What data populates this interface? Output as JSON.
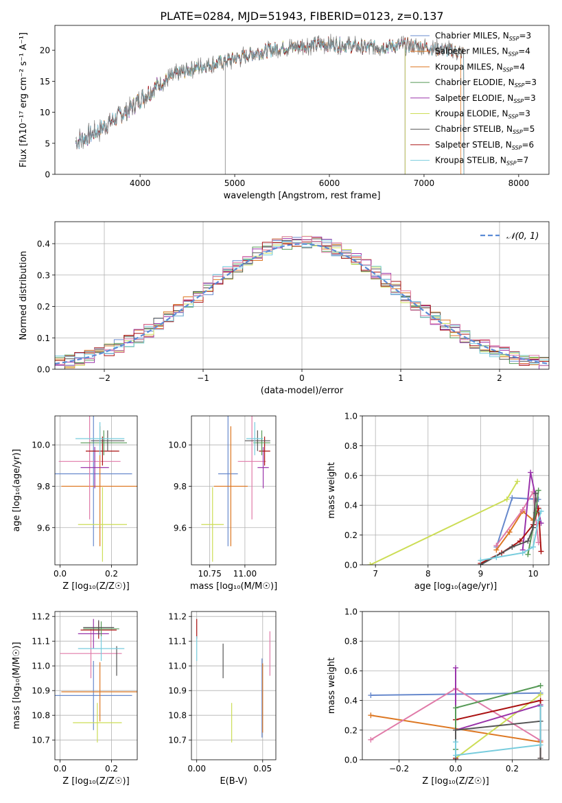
{
  "figure": {
    "title": "PLATE=0284, MJD=51943, FIBERID=0123, z=0.137"
  },
  "colors": {
    "Chabrier MILES": "#6688cc",
    "Salpeter MILES": "#dd7722",
    "Kroupa MILES": "#dd7722",
    "Chabrier ELODIE": "#559955",
    "Salpeter ELODIE": "#9933aa",
    "Kroupa ELODIE": "#ccdd55",
    "Chabrier STELIB": "#555555",
    "Salpeter STELIB": "#aa1111",
    "Kroupa STELIB": "#77ccdd",
    "pink": "#e07aa8",
    "data": "#808080"
  },
  "chart_data": [
    {
      "id": "spectrum",
      "type": "line",
      "title": "PLATE=0284, MJD=51943, FIBERID=0123, z=0.137",
      "xlabel": "wavelength [Angstrom, rest frame]",
      "ylabel": "Flux [fλ10⁻¹⁷ erg cm⁻² s⁻¹ A⁻¹]",
      "xlim": [
        3100,
        8320
      ],
      "ylim": [
        0,
        24
      ],
      "xticks": [
        4000,
        5000,
        6000,
        7000,
        8000
      ],
      "yticks": [
        0,
        5,
        10,
        15,
        20
      ],
      "legend_position": "top-right",
      "legend": [
        {
          "name": "Chabrier MILES",
          "label": "Chabrier MILES, N",
          "sub": "SSP",
          "suffix": "=3",
          "color": "#6688cc"
        },
        {
          "name": "Salpeter MILES",
          "label": "Salpeter MILES, N",
          "sub": "SSP",
          "suffix": "=4",
          "color": "#dd7722"
        },
        {
          "name": "Kroupa MILES",
          "label": "Kroupa MILES, N",
          "sub": "SSP",
          "suffix": "=4",
          "color": "#dd7722"
        },
        {
          "name": "Chabrier ELODIE",
          "label": "Chabrier ELODIE, N",
          "sub": "SSP",
          "suffix": "=3",
          "color": "#559955"
        },
        {
          "name": "Salpeter ELODIE",
          "label": "Salpeter ELODIE, N",
          "sub": "SSP",
          "suffix": "=3",
          "color": "#9933aa"
        },
        {
          "name": "Kroupa ELODIE",
          "label": "Kroupa ELODIE, N",
          "sub": "SSP",
          "suffix": "=3",
          "color": "#ccdd55"
        },
        {
          "name": "Chabrier STELIB",
          "label": "Chabrier STELIB, N",
          "sub": "SSP",
          "suffix": "=5",
          "color": "#555555"
        },
        {
          "name": "Salpeter STELIB",
          "label": "Salpeter STELIB, N",
          "sub": "SSP",
          "suffix": "=6",
          "color": "#aa1111"
        },
        {
          "name": "Kroupa STELIB",
          "label": "Kroupa STELIB, N",
          "sub": "SSP",
          "suffix": "=7",
          "color": "#77ccdd"
        }
      ],
      "continuum": [
        [
          3320,
          5.2
        ],
        [
          3500,
          6.5
        ],
        [
          3700,
          8.6
        ],
        [
          3900,
          10.6
        ],
        [
          4000,
          12.1
        ],
        [
          4200,
          14.5
        ],
        [
          4400,
          16.2
        ],
        [
          4600,
          17.3
        ],
        [
          4800,
          17.8
        ],
        [
          5000,
          18.6
        ],
        [
          5200,
          19.5
        ],
        [
          5500,
          20.4
        ],
        [
          5800,
          20.8
        ],
        [
          6000,
          21.0
        ],
        [
          6200,
          20.8
        ],
        [
          6400,
          20.4
        ],
        [
          6600,
          20.6
        ],
        [
          6800,
          20.8
        ],
        [
          7000,
          20.6
        ],
        [
          7200,
          20.1
        ],
        [
          7400,
          19.6
        ]
      ],
      "model_ends": [
        {
          "name": "Chabrier MILES",
          "start": 3320,
          "end": 7420
        },
        {
          "name": "Salpeter MILES",
          "start": 3570,
          "end": 7390
        },
        {
          "name": "Kroupa MILES",
          "start": 3570,
          "end": 7420
        },
        {
          "name": "Chabrier ELODIE",
          "start": 3320,
          "end": 6800
        },
        {
          "name": "Salpeter ELODIE",
          "start": 3320,
          "end": 6800
        },
        {
          "name": "Kroupa ELODIE",
          "start": 3920,
          "end": 6800
        },
        {
          "name": "Chabrier STELIB",
          "start": 3320,
          "end": 7420
        },
        {
          "name": "Salpeter STELIB",
          "start": 3320,
          "end": 7420
        },
        {
          "name": "Kroupa STELIB",
          "start": 3320,
          "end": 7420
        }
      ]
    },
    {
      "id": "residuals",
      "type": "line",
      "xlabel": "(data-model)/error",
      "ylabel": "Normed distribution",
      "xlim": [
        -2.5,
        2.5
      ],
      "ylim": [
        0,
        0.47
      ],
      "xticks": [
        -2,
        -1,
        0,
        1,
        2
      ],
      "yticks": [
        0.0,
        0.1,
        0.2,
        0.3,
        0.4
      ],
      "grid": true,
      "legend_position": "top-right",
      "legend": [
        {
          "name": "N(0,1)",
          "label": "𝒩(0, 1)",
          "color": "#5b8bd6"
        }
      ],
      "bin_width": 0.1,
      "histogram_peaks": [
        0.45,
        0.43,
        0.42,
        0.41,
        0.44,
        0.42,
        0.4
      ]
    },
    {
      "id": "age-vs-Z",
      "type": "scatter",
      "xlabel": "Z [log₁₀(Z/Z☉)]",
      "ylabel": "age  [log₁₀(age/yr)]",
      "xlim": [
        -0.02,
        0.3
      ],
      "ylim": [
        9.42,
        10.14
      ],
      "xticks": [
        0.0,
        0.2
      ],
      "yticks": [
        9.6,
        9.8,
        10.0
      ],
      "grid": true,
      "points": [
        {
          "color": "#6688cc",
          "x": 0.13,
          "xerr": 0.15,
          "y": 9.86,
          "yerr": 0.35
        },
        {
          "color": "#dd7722",
          "x": 0.155,
          "xerr": 0.15,
          "y": 9.8,
          "yerr": 0.29
        },
        {
          "color": "#ccdd55",
          "x": 0.165,
          "xerr": 0.095,
          "y": 9.615,
          "yerr": 0.18
        },
        {
          "color": "#e07aa8",
          "x": 0.115,
          "xerr": 0.12,
          "y": 9.92,
          "yerr": 0.28
        },
        {
          "color": "#9933aa",
          "x": 0.135,
          "xerr": 0.055,
          "y": 9.89,
          "yerr": 0.1
        },
        {
          "color": "#aa1111",
          "x": 0.165,
          "xerr": 0.065,
          "y": 9.97,
          "yerr": 0.07
        },
        {
          "color": "#559955",
          "x": 0.17,
          "xerr": 0.09,
          "y": 10.01,
          "yerr": 0.06
        },
        {
          "color": "#555555",
          "x": 0.185,
          "xerr": 0.065,
          "y": 10.02,
          "yerr": 0.05
        },
        {
          "color": "#77ccdd",
          "x": 0.155,
          "xerr": 0.095,
          "y": 10.03,
          "yerr": 0.08
        }
      ]
    },
    {
      "id": "age-vs-mass",
      "type": "scatter",
      "xlabel": "mass [log₁₀(M/M☉)]",
      "ylabel": "",
      "xlim": [
        10.62,
        11.22
      ],
      "ylim": [
        9.42,
        10.14
      ],
      "xticks": [
        10.75,
        11.0
      ],
      "yticks": [
        9.6,
        9.8,
        10.0
      ],
      "grid": true,
      "points": [
        {
          "color": "#6688cc",
          "x": 10.88,
          "xerr": 0.07,
          "y": 9.86,
          "yerr": 0.35
        },
        {
          "color": "#dd7722",
          "x": 10.9,
          "xerr": 0.12,
          "y": 9.8,
          "yerr": 0.29
        },
        {
          "color": "#ccdd55",
          "x": 10.77,
          "xerr": 0.08,
          "y": 9.615,
          "yerr": 0.18
        },
        {
          "color": "#e07aa8",
          "x": 11.05,
          "xerr": 0.1,
          "y": 9.92,
          "yerr": 0.28
        },
        {
          "color": "#9933aa",
          "x": 11.13,
          "xerr": 0.04,
          "y": 9.89,
          "yerr": 0.1
        },
        {
          "color": "#aa1111",
          "x": 11.14,
          "xerr": 0.04,
          "y": 9.97,
          "yerr": 0.07
        },
        {
          "color": "#559955",
          "x": 11.12,
          "xerr": 0.06,
          "y": 10.01,
          "yerr": 0.06
        },
        {
          "color": "#555555",
          "x": 11.09,
          "xerr": 0.09,
          "y": 10.02,
          "yerr": 0.05
        },
        {
          "color": "#77ccdd",
          "x": 11.07,
          "xerr": 0.06,
          "y": 10.03,
          "yerr": 0.08
        }
      ]
    },
    {
      "id": "massweight-vs-age",
      "type": "line",
      "xlabel": "age  [log₁₀(age/yr)]",
      "ylabel": "mass weight",
      "xlim": [
        6.75,
        10.3
      ],
      "ylim": [
        0,
        1.0
      ],
      "xticks": [
        7,
        8,
        9,
        10
      ],
      "yticks": [
        0.0,
        0.2,
        0.4,
        0.6,
        0.8,
        1.0
      ],
      "grid": true,
      "series": [
        {
          "color": "#6688cc",
          "x": [
            9.3,
            9.6,
            10.1
          ],
          "y": [
            0.12,
            0.45,
            0.44
          ]
        },
        {
          "color": "#dd7722",
          "x": [
            9.3,
            9.55,
            9.8,
            10.0
          ],
          "y": [
            0.1,
            0.22,
            0.36,
            0.3
          ]
        },
        {
          "color": "#ccdd55",
          "x": [
            6.9,
            9.5,
            9.7
          ],
          "y": [
            0.0,
            0.44,
            0.56
          ]
        },
        {
          "color": "#e07aa8",
          "x": [
            9.3,
            9.8,
            10.0,
            10.1
          ],
          "y": [
            0.13,
            0.37,
            0.49,
            0.15
          ]
        },
        {
          "color": "#9933aa",
          "x": [
            9.8,
            9.95,
            10.15
          ],
          "y": [
            0.1,
            0.62,
            0.28
          ]
        },
        {
          "color": "#aa1111",
          "x": [
            9.0,
            9.4,
            9.75,
            10.0,
            10.1,
            10.15
          ],
          "y": [
            0.01,
            0.08,
            0.16,
            0.27,
            0.38,
            0.09
          ]
        },
        {
          "color": "#559955",
          "x": [
            9.9,
            10.05,
            10.1
          ],
          "y": [
            0.07,
            0.35,
            0.5
          ]
        },
        {
          "color": "#555555",
          "x": [
            9.0,
            9.6,
            9.9,
            10.0,
            10.05
          ],
          "y": [
            0.0,
            0.12,
            0.16,
            0.25,
            0.48
          ]
        },
        {
          "color": "#77ccdd",
          "x": [
            9.0,
            9.3,
            9.8,
            10.0,
            10.1,
            10.15
          ],
          "y": [
            0.03,
            0.05,
            0.08,
            0.12,
            0.3,
            0.36
          ]
        }
      ]
    },
    {
      "id": "mass-vs-Z",
      "type": "scatter",
      "xlabel": "Z [log₁₀(Z/Z☉)]",
      "ylabel": "mass [log₁₀(M/M☉)]",
      "xlim": [
        -0.02,
        0.3
      ],
      "ylim": [
        10.62,
        11.22
      ],
      "xticks": [
        0.0,
        0.2
      ],
      "yticks": [
        10.7,
        10.8,
        10.9,
        11.0,
        11.1,
        11.2
      ],
      "grid": true,
      "points": [
        {
          "color": "#6688cc",
          "x": 0.13,
          "xerr": 0.15,
          "y": 10.88,
          "yerr": 0.14
        },
        {
          "color": "#dd7722",
          "x": 0.155,
          "xerr": 0.15,
          "y": 10.895,
          "yerr": 0.12
        },
        {
          "color": "#ccdd55",
          "x": 0.145,
          "xerr": 0.095,
          "y": 10.77,
          "yerr": 0.08
        },
        {
          "color": "#e07aa8",
          "x": 0.12,
          "xerr": 0.12,
          "y": 11.05,
          "yerr": 0.1
        },
        {
          "color": "#9933aa",
          "x": 0.13,
          "xerr": 0.06,
          "y": 11.13,
          "yerr": 0.06
        },
        {
          "color": "#aa1111",
          "x": 0.15,
          "xerr": 0.07,
          "y": 11.145,
          "yerr": 0.035
        },
        {
          "color": "#559955",
          "x": 0.16,
          "xerr": 0.07,
          "y": 11.15,
          "yerr": 0.03
        },
        {
          "color": "#555555",
          "x": 0.15,
          "xerr": 0.06,
          "y": 11.155,
          "yerr": 0.03
        },
        {
          "color": "#555555",
          "x": 0.22,
          "xerr": 0.0,
          "y": 11.02,
          "yerr": 0.06
        },
        {
          "color": "#77ccdd",
          "x": 0.16,
          "xerr": 0.09,
          "y": 11.07,
          "yerr": 0.05
        }
      ]
    },
    {
      "id": "mass-vs-EBV",
      "type": "scatter",
      "xlabel": "E(B-V)",
      "ylabel": "",
      "xlim": [
        -0.004,
        0.06
      ],
      "ylim": [
        10.62,
        11.22
      ],
      "xticks": [
        0.0,
        0.05
      ],
      "yticks": [
        10.7,
        10.8,
        10.9,
        11.0,
        11.1,
        11.2
      ],
      "grid": true,
      "points": [
        {
          "color": "#aa1111",
          "x": 0.0,
          "xerr": 0.0,
          "y": 11.15,
          "yerr": 0.04
        },
        {
          "color": "#77ccdd",
          "x": 0.0,
          "xerr": 0.0,
          "y": 11.07,
          "yerr": 0.05
        },
        {
          "color": "#555555",
          "x": 0.02,
          "xerr": 0.0,
          "y": 11.02,
          "yerr": 0.07
        },
        {
          "color": "#ccdd55",
          "x": 0.0265,
          "xerr": 0.0,
          "y": 10.77,
          "yerr": 0.08
        },
        {
          "color": "#6688cc",
          "x": 0.0495,
          "xerr": 0.0,
          "y": 10.87,
          "yerr": 0.16
        },
        {
          "color": "#dd7722",
          "x": 0.05,
          "xerr": 0.0,
          "y": 10.87,
          "yerr": 0.14
        },
        {
          "color": "#e07aa8",
          "x": 0.0555,
          "xerr": 0.0,
          "y": 11.05,
          "yerr": 0.09
        }
      ]
    },
    {
      "id": "massweight-vs-Z",
      "type": "line",
      "xlabel": "Z [log₁₀(Z/Z☉)]",
      "ylabel": "mass weight",
      "xlim": [
        -0.33,
        0.33
      ],
      "ylim": [
        0,
        1.0
      ],
      "xticks": [
        -0.2,
        0.0,
        0.2
      ],
      "yticks": [
        0.0,
        0.2,
        0.4,
        0.6,
        0.8,
        1.0
      ],
      "grid": true,
      "series": [
        {
          "color": "#6688cc",
          "x": [
            -0.3,
            0.3
          ],
          "y": [
            0.435,
            0.45
          ]
        },
        {
          "color": "#dd7722",
          "x": [
            -0.3,
            0.3
          ],
          "y": [
            0.3,
            0.12
          ]
        },
        {
          "color": "#e07aa8",
          "x": [
            -0.3,
            0.0,
            0.3
          ],
          "y": [
            0.135,
            0.48,
            0.13
          ]
        },
        {
          "color": "#ccdd55",
          "x": [
            0.0,
            0.3
          ],
          "y": [
            0.01,
            0.44
          ]
        },
        {
          "color": "#9933aa",
          "x": [
            0.0,
            0.0,
            0.3
          ],
          "y": [
            0.62,
            0.2,
            0.37
          ]
        },
        {
          "color": "#aa1111",
          "x": [
            0.0,
            0.0,
            0.3,
            0.3
          ],
          "y": [
            0.01,
            0.27,
            0.4,
            0.01
          ]
        },
        {
          "color": "#559955",
          "x": [
            0.0,
            0.0,
            0.3
          ],
          "y": [
            0.07,
            0.35,
            0.5
          ]
        },
        {
          "color": "#555555",
          "x": [
            0.0,
            0.0,
            0.3,
            0.3
          ],
          "y": [
            0.0,
            0.2,
            0.26,
            0.01
          ]
        },
        {
          "color": "#77ccdd",
          "x": [
            0.0,
            0.0,
            0.3,
            0.3
          ],
          "y": [
            0.12,
            0.03,
            0.1,
            0.36
          ]
        }
      ]
    }
  ]
}
